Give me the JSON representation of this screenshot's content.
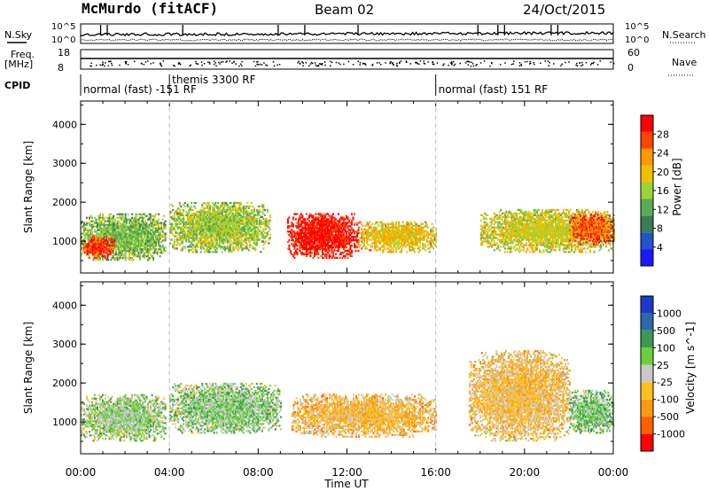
{
  "header": {
    "station": "McMurdo (fitACF)",
    "beam": "Beam 02",
    "date": "24/Oct/2015"
  },
  "left_labels": {
    "nsky": "N.Sky",
    "freq": "Freq.",
    "freq_unit": "[MHz]",
    "cpid": "CPID"
  },
  "right_labels": {
    "nsearch": "N.Search",
    "nave": "Nave"
  },
  "noise_axis": {
    "left_top": "10^5",
    "left_bottom": "10^0",
    "right_top": "10^5",
    "right_bottom": "10^0"
  },
  "freq_axis": {
    "left_ticks": [
      "18",
      "8"
    ],
    "right_ticks": [
      "60",
      "0"
    ]
  },
  "cpid_segments": [
    {
      "label": "normal (fast) -151 RF",
      "start_hour": 0
    },
    {
      "label": "themis 3300 RF",
      "start_hour": 4.0
    },
    {
      "label": "normal (fast) 151 RF",
      "start_hour": 16.0
    }
  ],
  "colors": {
    "power_scale": [
      "#1a1aff",
      "#2255cc",
      "#3a7d54",
      "#5aab55",
      "#9bd33a",
      "#f0c000",
      "#ff9900",
      "#ff4400",
      "#ff0000"
    ],
    "velocity_scale": [
      "#ff0000",
      "#ff6000",
      "#ff9a10",
      "#ffc020",
      "#c8c8c8",
      "#6ad040",
      "#3c9a50",
      "#2b6aa8",
      "#1a3acc"
    ],
    "axis": "#000000",
    "dashed_marker": "#bbbbbb"
  },
  "chart_data": [
    {
      "type": "heatmap",
      "title": "",
      "xlabel": "Time UT",
      "ylabel": "Slant Range [km]",
      "xticks": [
        "00:00",
        "04:00",
        "08:00",
        "12:00",
        "16:00",
        "20:00",
        "00:00"
      ],
      "yticks": [
        "1000",
        "2000",
        "3000",
        "4000"
      ],
      "xlim": [
        0,
        24
      ],
      "ylim": [
        180,
        4600
      ],
      "colorbar": {
        "label": "Power [dB]",
        "ticks": [
          "4",
          "8",
          "12",
          "16",
          "20",
          "24",
          "28"
        ],
        "range": [
          0,
          32
        ]
      },
      "regions": [
        {
          "x": [
            0.0,
            3.8
          ],
          "y": [
            500,
            1700
          ],
          "mean_value": 14
        },
        {
          "x": [
            0.1,
            1.5
          ],
          "y": [
            550,
            1100
          ],
          "mean_value": 28
        },
        {
          "x": [
            4.0,
            8.5
          ],
          "y": [
            700,
            2000
          ],
          "mean_value": 16
        },
        {
          "x": [
            9.3,
            12.5
          ],
          "y": [
            550,
            1700
          ],
          "mean_value": 30
        },
        {
          "x": [
            12.5,
            16.0
          ],
          "y": [
            700,
            1500
          ],
          "mean_value": 20
        },
        {
          "x": [
            18.0,
            24.0
          ],
          "y": [
            700,
            1800
          ],
          "mean_value": 18
        },
        {
          "x": [
            22.0,
            24.0
          ],
          "y": [
            900,
            1700
          ],
          "mean_value": 26
        }
      ]
    },
    {
      "type": "heatmap",
      "title": "",
      "xlabel": "Time UT",
      "ylabel": "Slant Range [km]",
      "xticks": [
        "00:00",
        "04:00",
        "08:00",
        "12:00",
        "16:00",
        "20:00",
        "00:00"
      ],
      "yticks": [
        "1000",
        "2000",
        "3000",
        "4000"
      ],
      "xlim": [
        0,
        24
      ],
      "ylim": [
        180,
        4600
      ],
      "colorbar": {
        "label": "Velocity [m s^-1]",
        "ticks": [
          "-1000",
          "-500",
          "-100",
          "-25",
          "25",
          "100",
          "500",
          "1000"
        ],
        "range": [
          -1200,
          1200
        ]
      },
      "regions": [
        {
          "x": [
            0.0,
            3.8
          ],
          "y": [
            500,
            1700
          ],
          "mean_value": 150
        },
        {
          "x": [
            4.0,
            9.0
          ],
          "y": [
            700,
            2000
          ],
          "mean_value": 200
        },
        {
          "x": [
            9.5,
            16.0
          ],
          "y": [
            600,
            1700
          ],
          "mean_value": -300
        },
        {
          "x": [
            17.5,
            22.0
          ],
          "y": [
            500,
            2800
          ],
          "mean_value": -250
        },
        {
          "x": [
            22.0,
            24.0
          ],
          "y": [
            700,
            1800
          ],
          "mean_value": 250
        }
      ]
    }
  ]
}
